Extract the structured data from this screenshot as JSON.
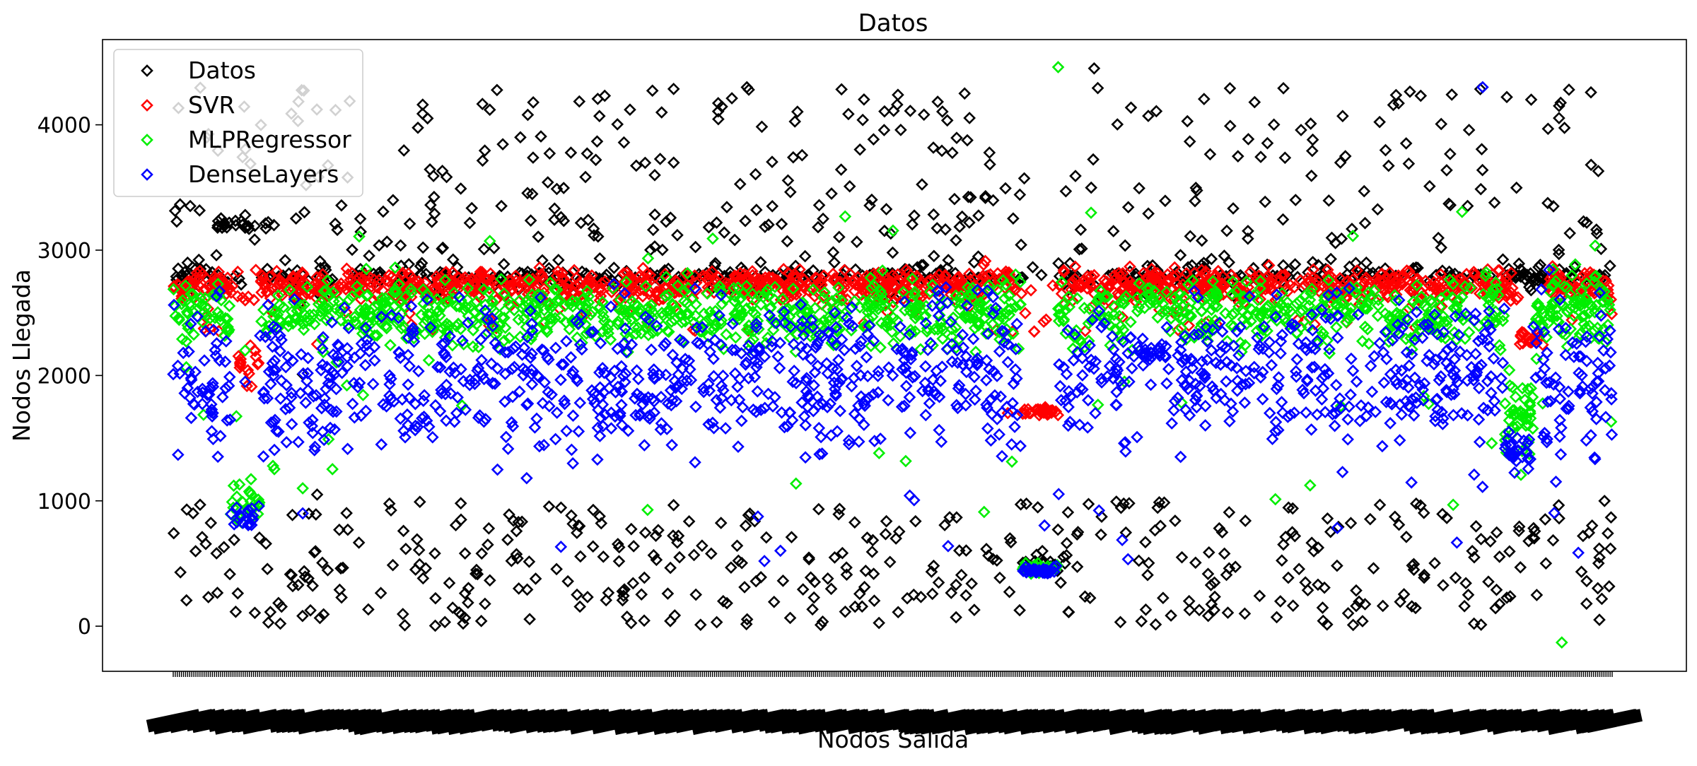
{
  "chart_data": {
    "type": "scatter",
    "title": "Datos",
    "xlabel": "Nodos Salida",
    "ylabel": "Nodos Llegada",
    "ylim": [
      -360,
      4680
    ],
    "yticks": [
      0,
      1000,
      2000,
      3000,
      4000
    ],
    "x_ticks_note": "dense overlapping categorical tick labels (illegible)",
    "grid": false,
    "legend_position": "top-left",
    "marker": "diamond-open",
    "series": [
      {
        "name": "Datos",
        "color": "#000000",
        "style": "real",
        "samples": [
          [
            0.005,
            430
          ],
          [
            0.01,
            2900
          ],
          [
            0.015,
            2780
          ],
          [
            0.03,
            2960
          ],
          [
            0.05,
            3280
          ],
          [
            0.07,
            3200
          ],
          [
            0.09,
            2010
          ],
          [
            0.1,
            1050
          ],
          [
            0.13,
            3250
          ],
          [
            0.16,
            760
          ],
          [
            0.2,
            850
          ],
          [
            0.22,
            4120
          ],
          [
            0.3,
            2780
          ],
          [
            0.4,
            4280
          ],
          [
            0.45,
            10
          ],
          [
            0.5,
            2980
          ],
          [
            0.55,
            4250
          ],
          [
            0.58,
            2800
          ],
          [
            0.6,
            570
          ],
          [
            0.61,
            460
          ],
          [
            0.64,
            4450
          ],
          [
            0.7,
            2960
          ],
          [
            0.78,
            3400
          ],
          [
            0.82,
            10
          ],
          [
            0.9,
            250
          ],
          [
            0.97,
            4280
          ],
          [
            0.995,
            2800
          ]
        ]
      },
      {
        "name": "SVR",
        "color": "#ff0000",
        "style": "svr",
        "samples": [
          [
            0.01,
            2750
          ],
          [
            0.05,
            2600
          ],
          [
            0.1,
            2250
          ],
          [
            0.15,
            2800
          ],
          [
            0.3,
            2750
          ],
          [
            0.5,
            2800
          ],
          [
            0.58,
            1700
          ],
          [
            0.61,
            1720
          ],
          [
            0.64,
            2800
          ],
          [
            0.68,
            2850
          ],
          [
            0.7,
            2650
          ],
          [
            0.77,
            2800
          ],
          [
            0.88,
            2750
          ],
          [
            0.945,
            2300
          ],
          [
            0.99,
            2700
          ]
        ]
      },
      {
        "name": "MLPRegressor",
        "color": "#00ee00",
        "style": "mlp",
        "samples": [
          [
            0.01,
            2400
          ],
          [
            0.05,
            2200
          ],
          [
            0.09,
            1100
          ],
          [
            0.2,
            2600
          ],
          [
            0.5,
            2550
          ],
          [
            0.6,
            480
          ],
          [
            0.615,
            4460
          ],
          [
            0.68,
            2600
          ],
          [
            0.8,
            2600
          ],
          [
            0.94,
            1600
          ],
          [
            0.965,
            -130
          ],
          [
            0.99,
            2300
          ]
        ]
      },
      {
        "name": "DenseLayers",
        "color": "#0000ff",
        "style": "dense",
        "samples": [
          [
            0.01,
            1900
          ],
          [
            0.05,
            1950
          ],
          [
            0.09,
            900
          ],
          [
            0.2,
            2050
          ],
          [
            0.5,
            2000
          ],
          [
            0.6,
            430
          ],
          [
            0.68,
            2150
          ],
          [
            0.8,
            2000
          ],
          [
            0.91,
            4300
          ],
          [
            0.935,
            1400
          ],
          [
            0.99,
            2100
          ]
        ]
      }
    ]
  }
}
